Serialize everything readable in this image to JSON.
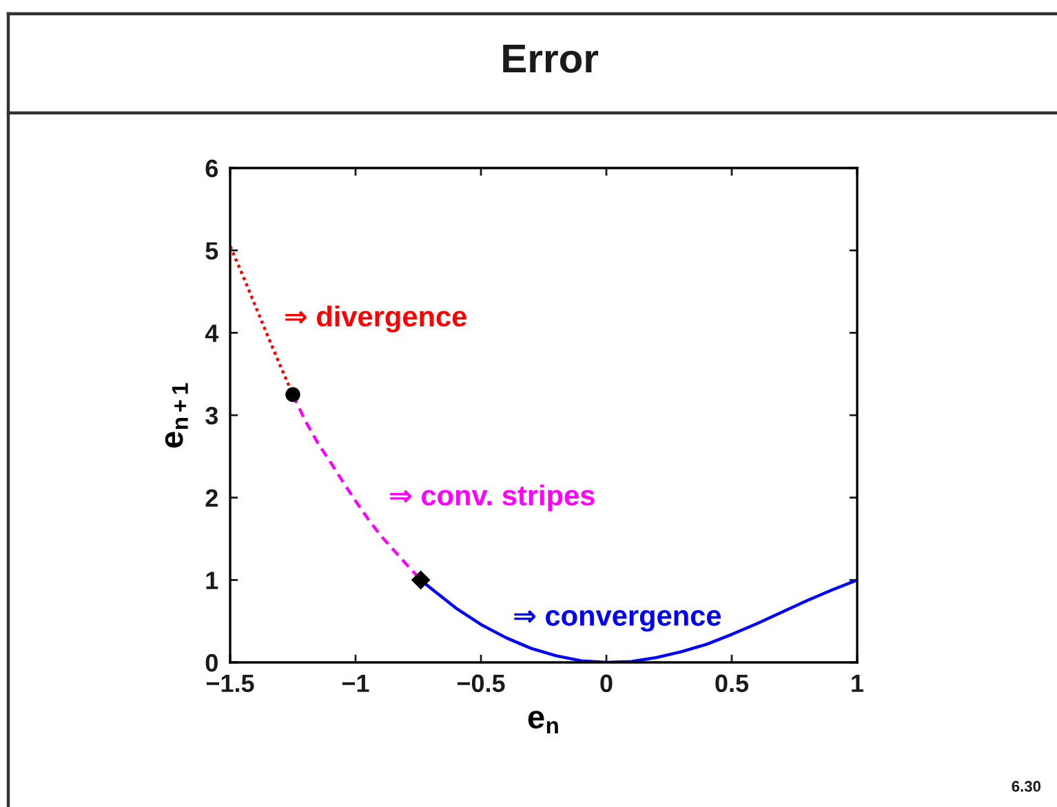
{
  "chart_data": {
    "type": "line",
    "title": "Error",
    "xlabel": "e$_{n}$",
    "ylabel": "e$_{n+1}$",
    "xlim": [
      -1.5,
      1
    ],
    "ylim": [
      0,
      6
    ],
    "xticks": [
      {
        "value": -1.5,
        "label": "−1.5"
      },
      {
        "value": -1,
        "label": "−1"
      },
      {
        "value": -0.5,
        "label": "−0.5"
      },
      0,
      0.5,
      1
    ],
    "yticks": [
      0,
      1,
      2,
      3,
      4,
      5,
      6
    ],
    "series": [
      {
        "name": "⇒ divergence",
        "color": "#ff0000",
        "line_style": "dotted",
        "x": [
          -1.5,
          -1.45,
          -1.4,
          -1.35,
          -1.3,
          -1.25
        ],
        "values": [
          5.05,
          4.7,
          4.33,
          3.96,
          3.6,
          3.25
        ]
      },
      {
        "name": "⇒ conv. stripes",
        "color": "#ff00ff",
        "line_style": "dashed",
        "x": [
          -1.25,
          -1.2,
          -1.15,
          -1.1,
          -1.05,
          -1.0,
          -0.95,
          -0.9,
          -0.85,
          -0.8,
          -0.74
        ],
        "values": [
          3.25,
          2.93,
          2.66,
          2.43,
          2.19,
          1.96,
          1.74,
          1.54,
          1.37,
          1.2,
          1.0
        ]
      },
      {
        "name": "⇒ convergence",
        "color": "#0000ff",
        "line_style": "solid",
        "x": [
          -0.74,
          -0.7,
          -0.6,
          -0.5,
          -0.4,
          -0.3,
          -0.2,
          -0.1,
          0,
          0.1,
          0.2,
          0.3,
          0.4,
          0.5,
          0.6,
          0.7,
          0.8,
          0.9,
          1.0
        ],
        "values": [
          1.0,
          0.9,
          0.66,
          0.46,
          0.3,
          0.17,
          0.08,
          0.02,
          0.0,
          0.01,
          0.06,
          0.13,
          0.22,
          0.34,
          0.47,
          0.61,
          0.75,
          0.88,
          1.0
        ]
      },
      {
        "type": "scatter",
        "marker": "circle",
        "color": "#000000",
        "x": [
          -1.25
        ],
        "values": [
          3.25
        ]
      },
      {
        "type": "scatter",
        "marker": "diamond",
        "color": "#000000",
        "x": [
          -0.74
        ],
        "values": [
          1.0
        ]
      }
    ],
    "annotations": [
      "6.30"
    ]
  }
}
